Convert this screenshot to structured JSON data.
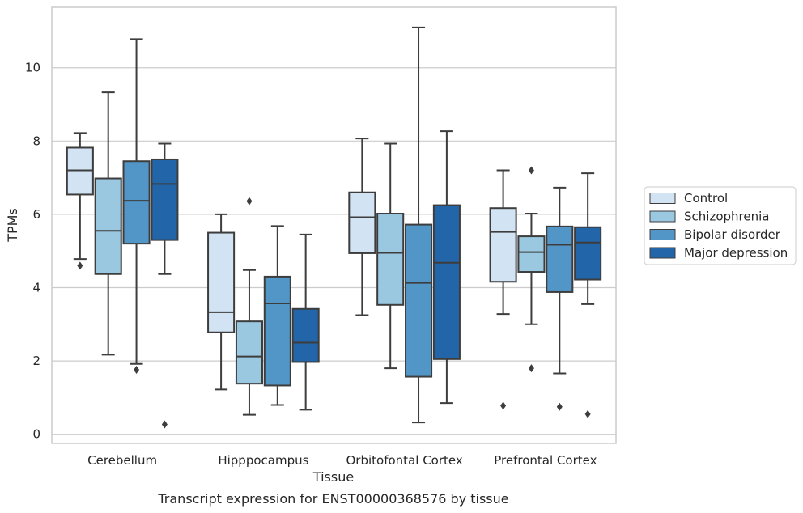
{
  "caption": "Transcript expression for ENST00000368576 by tissue",
  "chart_data": {
    "type": "box",
    "xlabel": "Tissue",
    "ylabel": "TPMs",
    "ylim": [
      -0.25,
      11.65
    ],
    "yticks": [
      0,
      2,
      4,
      6,
      8,
      10
    ],
    "grid": "horizontal",
    "legend_placement": "right",
    "categories": [
      "Cerebellum",
      "Hipppocampus",
      "Orbitofontal Cortex",
      "Prefrontal Cortex"
    ],
    "series": [
      {
        "name": "Control",
        "color": "#d2e3f3",
        "boxes": [
          {
            "whislo": 4.78,
            "q1": 6.54,
            "med": 7.2,
            "q3": 7.82,
            "whishi": 8.22,
            "fliers": [
              4.6
            ]
          },
          {
            "whislo": 1.22,
            "q1": 2.78,
            "med": 3.33,
            "q3": 5.5,
            "whishi": 6.0,
            "fliers": []
          },
          {
            "whislo": 3.25,
            "q1": 4.94,
            "med": 5.92,
            "q3": 6.6,
            "whishi": 8.07,
            "fliers": []
          },
          {
            "whislo": 3.28,
            "q1": 4.16,
            "med": 5.52,
            "q3": 6.17,
            "whishi": 7.2,
            "fliers": [
              0.78
            ]
          }
        ]
      },
      {
        "name": "Schizophrenia",
        "color": "#9ac8e0",
        "boxes": [
          {
            "whislo": 2.17,
            "q1": 4.37,
            "med": 5.55,
            "q3": 6.98,
            "whishi": 9.33,
            "fliers": []
          },
          {
            "whislo": 0.53,
            "q1": 1.38,
            "med": 2.12,
            "q3": 3.08,
            "whishi": 4.48,
            "fliers": [
              6.36
            ]
          },
          {
            "whislo": 1.8,
            "q1": 3.53,
            "med": 4.95,
            "q3": 6.02,
            "whishi": 7.93,
            "fliers": []
          },
          {
            "whislo": 3.0,
            "q1": 4.43,
            "med": 4.97,
            "q3": 5.4,
            "whishi": 6.02,
            "fliers": [
              1.8,
              7.2
            ]
          }
        ]
      },
      {
        "name": "Bipolar disorder",
        "color": "#5296c8",
        "boxes": [
          {
            "whislo": 1.92,
            "q1": 5.2,
            "med": 6.37,
            "q3": 7.45,
            "whishi": 10.78,
            "fliers": [
              1.76
            ]
          },
          {
            "whislo": 0.8,
            "q1": 1.33,
            "med": 3.57,
            "q3": 4.3,
            "whishi": 5.68,
            "fliers": []
          },
          {
            "whislo": 0.32,
            "q1": 1.57,
            "med": 4.13,
            "q3": 5.72,
            "whishi": 11.1,
            "fliers": []
          },
          {
            "whislo": 1.66,
            "q1": 3.88,
            "med": 5.17,
            "q3": 5.67,
            "whishi": 6.73,
            "fliers": [
              0.75
            ]
          }
        ]
      },
      {
        "name": "Major depression",
        "color": "#2265a8",
        "boxes": [
          {
            "whislo": 4.37,
            "q1": 5.3,
            "med": 6.83,
            "q3": 7.5,
            "whishi": 7.93,
            "fliers": [
              0.27
            ]
          },
          {
            "whislo": 0.67,
            "q1": 1.97,
            "med": 2.5,
            "q3": 3.42,
            "whishi": 5.45,
            "fliers": []
          },
          {
            "whislo": 0.85,
            "q1": 2.05,
            "med": 4.68,
            "q3": 6.25,
            "whishi": 8.27,
            "fliers": []
          },
          {
            "whislo": 3.55,
            "q1": 4.22,
            "med": 5.23,
            "q3": 5.65,
            "whishi": 7.12,
            "fliers": [
              0.55
            ]
          }
        ]
      }
    ]
  }
}
